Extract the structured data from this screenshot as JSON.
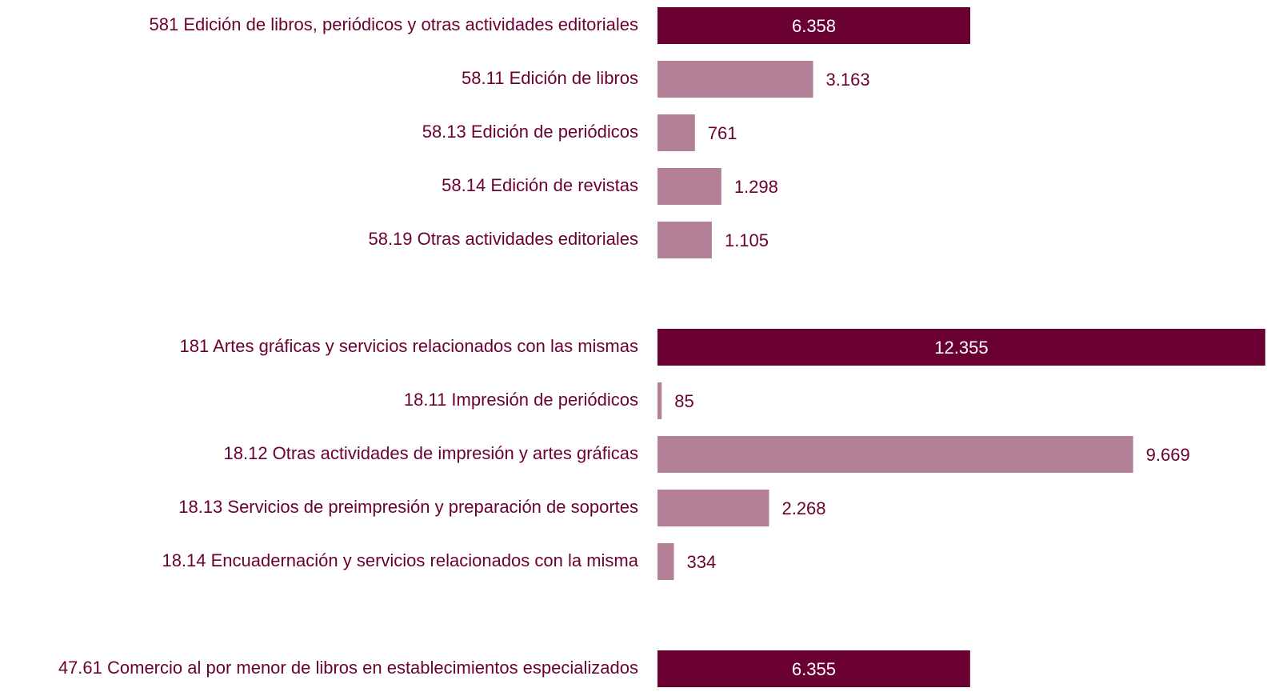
{
  "chart_data": {
    "type": "barh",
    "categories": [
      "581 Edición de libros, periódicos y otras actividades editoriales",
      "58.11 Edición de libros",
      "58.13 Edición de periódicos",
      "58.14 Edición de revistas",
      "58.19 Otras actividades editoriales",
      null,
      "181 Artes gráficas y servicios relacionados con las mismas",
      "18.11 Impresión de periódicos",
      "18.12 Otras actividades de impresión y artes gráficas",
      "18.13 Servicios de preimpresión y preparación de soportes",
      "18.14 Encuadernación y servicios relacionados con la misma",
      null,
      "47.61 Comercio al por menor de libros en establecimientos especializados"
    ],
    "values": [
      6358,
      3163,
      761,
      1298,
      1105,
      null,
      12355,
      85,
      9669,
      2268,
      334,
      null,
      6355
    ],
    "value_labels": [
      "6.358",
      "3.163",
      "761",
      "1.298",
      "1.105",
      null,
      "12.355",
      "85",
      "9.669",
      "2.268",
      "334",
      null,
      "6.355"
    ],
    "colors": [
      "#6b0033",
      "#b38098",
      "#b38098",
      "#b38098",
      "#b38098",
      null,
      "#6b0033",
      "#b38098",
      "#b38098",
      "#b38098",
      "#b38098",
      null,
      "#6b0033"
    ],
    "xlim": [
      0,
      13000
    ]
  }
}
